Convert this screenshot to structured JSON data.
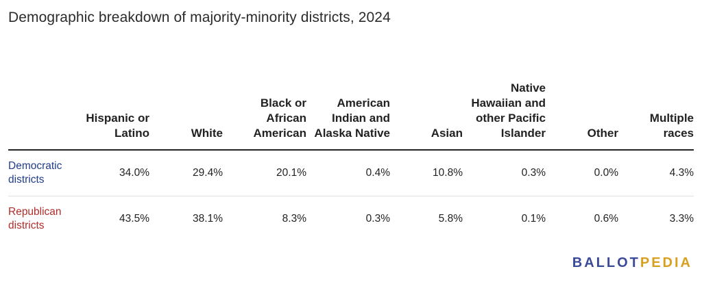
{
  "title": "Demographic breakdown of majority-minority districts, 2024",
  "colors": {
    "democratic": "#1f3c8c",
    "republican": "#b32a2a",
    "logo_blue": "#3b4a98",
    "logo_gold": "#d9a020"
  },
  "logo": {
    "part1": "BALLOT",
    "part2": "PEDIA"
  },
  "chart_data": {
    "type": "table",
    "title": "Demographic breakdown of majority-minority districts, 2024",
    "columns": [
      "",
      "Hispanic or Latino",
      "White",
      "Black or African American",
      "American Indian and Alaska Native",
      "Asian",
      "Native Hawaiian and other Pacific Islander",
      "Other",
      "Multiple races"
    ],
    "rows": [
      {
        "label": "Democratic districts",
        "values": [
          "34.0%",
          "29.4%",
          "20.1%",
          "0.4%",
          "10.8%",
          "0.3%",
          "0.0%",
          "4.3%"
        ]
      },
      {
        "label": "Republican districts",
        "values": [
          "43.5%",
          "38.1%",
          "8.3%",
          "0.3%",
          "5.8%",
          "0.1%",
          "0.6%",
          "3.3%"
        ]
      }
    ]
  }
}
